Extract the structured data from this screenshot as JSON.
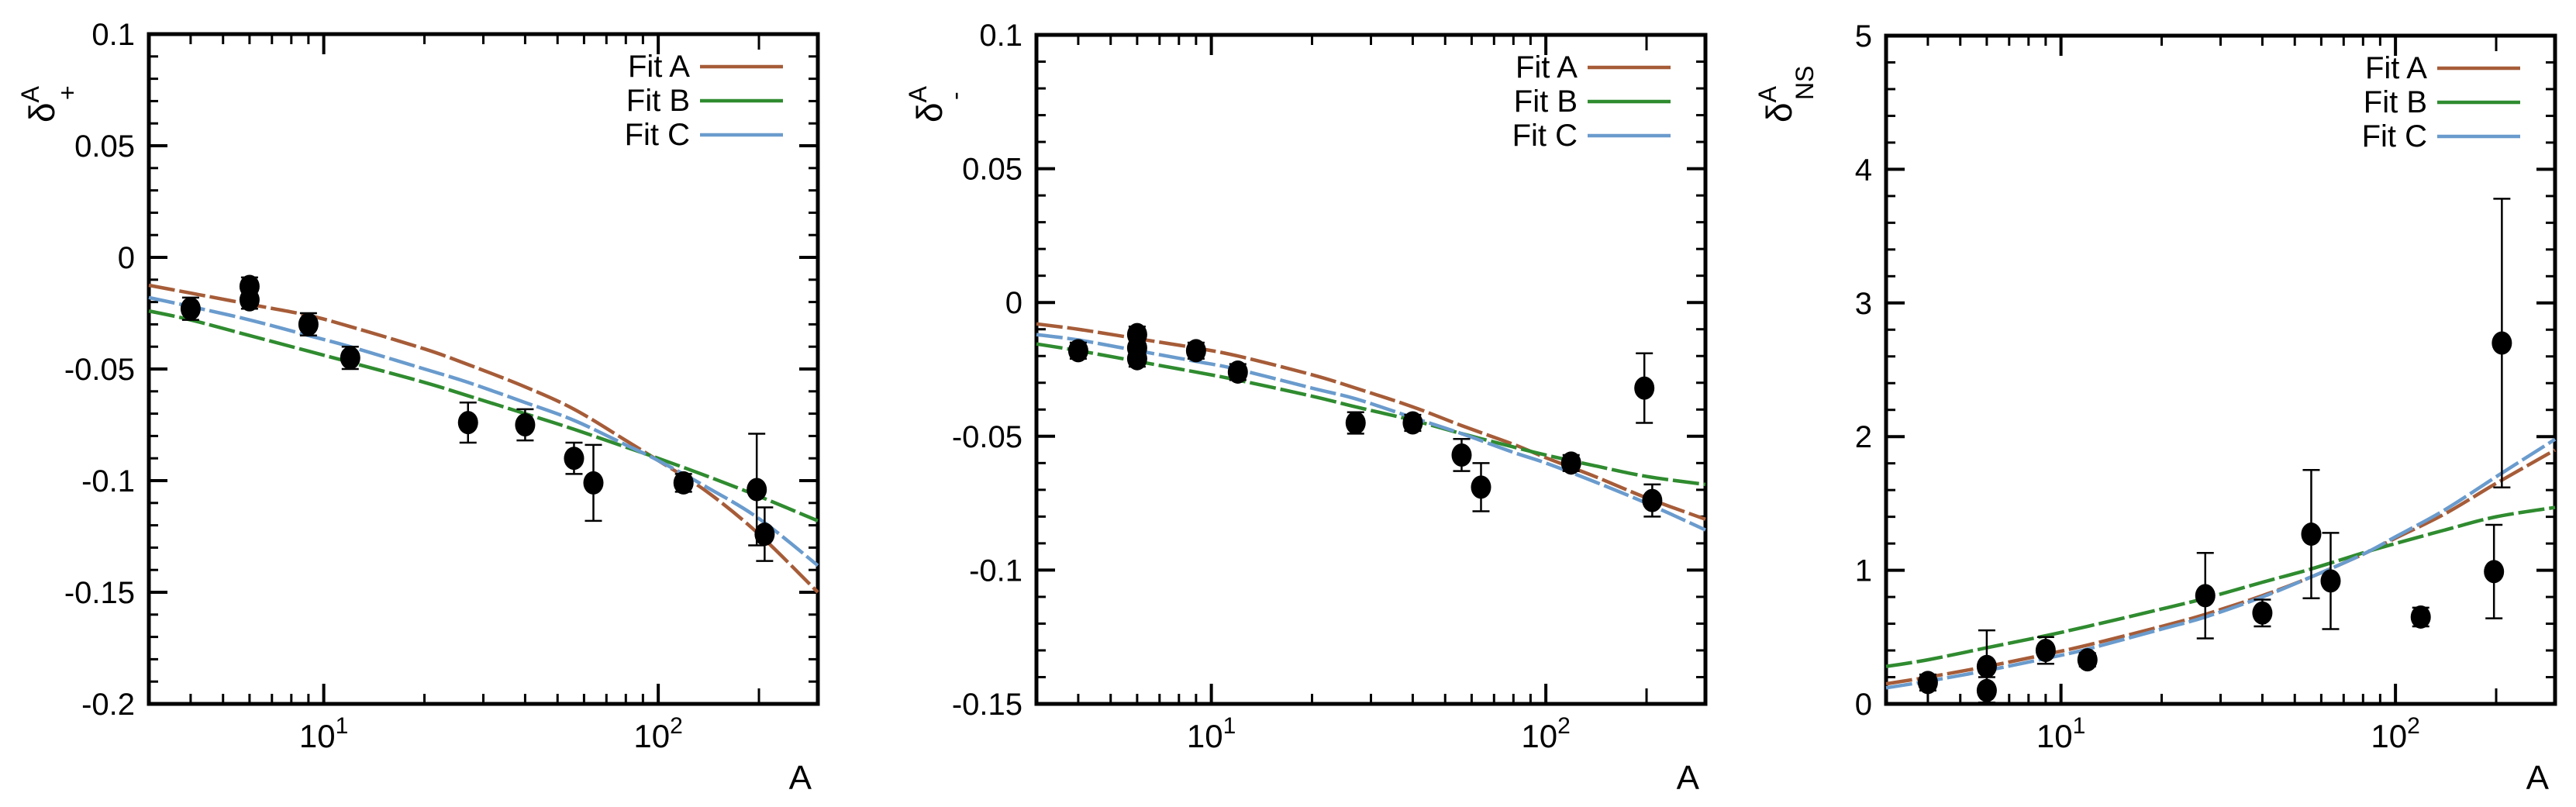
{
  "figure": {
    "background": "#ffffff",
    "axis_color": "#000000",
    "marker_color": "#000000",
    "xlabel": "A",
    "x_major_ticks": [
      {
        "v": 10,
        "base": "10",
        "exp": "1"
      },
      {
        "v": 100,
        "base": "10",
        "exp": "2"
      }
    ],
    "x_minor_ticks": [
      4,
      5,
      6,
      7,
      8,
      9,
      20,
      30,
      40,
      50,
      60,
      70,
      80,
      90,
      200
    ],
    "legend_labels": [
      "Fit A",
      "Fit B",
      "Fit C"
    ]
  },
  "chart_data": [
    {
      "type": "scatter",
      "title": "",
      "ylabel": {
        "base": "δ",
        "sup": "A",
        "sub": "+"
      },
      "xlabel": "A",
      "x_log": true,
      "xlim": [
        3,
        300
      ],
      "ylim": [
        -0.2,
        0.1
      ],
      "yticks": [
        {
          "v": 0.1,
          "label": "0.1"
        },
        {
          "v": 0.05,
          "label": "0.05"
        },
        {
          "v": 0,
          "label": "0"
        },
        {
          "v": -0.05,
          "label": "-0.05"
        },
        {
          "v": -0.1,
          "label": "-0.1"
        },
        {
          "v": -0.15,
          "label": "-0.15"
        },
        {
          "v": -0.2,
          "label": "-0.2"
        }
      ],
      "y_minor_step": 0.01,
      "legend_position": "top-right",
      "series": [
        {
          "name": "Fit A",
          "color": "#a65c38",
          "points": [
            [
              3,
              -0.0125
            ],
            [
              4,
              -0.016
            ],
            [
              6,
              -0.021
            ],
            [
              9,
              -0.026
            ],
            [
              12,
              -0.031
            ],
            [
              20,
              -0.041
            ],
            [
              27,
              -0.048
            ],
            [
              40,
              -0.058
            ],
            [
              56,
              -0.068
            ],
            [
              80,
              -0.082
            ],
            [
              100,
              -0.091
            ],
            [
              140,
              -0.105
            ],
            [
              200,
              -0.124
            ],
            [
              300,
              -0.15
            ]
          ]
        },
        {
          "name": "Fit B",
          "color": "#2f8b2f",
          "points": [
            [
              3,
              -0.024
            ],
            [
              4,
              -0.028
            ],
            [
              6,
              -0.035
            ],
            [
              9,
              -0.042
            ],
            [
              12,
              -0.047
            ],
            [
              20,
              -0.056
            ],
            [
              27,
              -0.062
            ],
            [
              40,
              -0.07
            ],
            [
              56,
              -0.077
            ],
            [
              80,
              -0.085
            ],
            [
              100,
              -0.09
            ],
            [
              140,
              -0.098
            ],
            [
              200,
              -0.107
            ],
            [
              300,
              -0.118
            ]
          ]
        },
        {
          "name": "Fit C",
          "color": "#6a9bcd",
          "points": [
            [
              3,
              -0.018
            ],
            [
              4,
              -0.022
            ],
            [
              6,
              -0.028
            ],
            [
              9,
              -0.035
            ],
            [
              12,
              -0.04
            ],
            [
              20,
              -0.05
            ],
            [
              27,
              -0.056
            ],
            [
              40,
              -0.065
            ],
            [
              56,
              -0.073
            ],
            [
              80,
              -0.084
            ],
            [
              100,
              -0.091
            ],
            [
              140,
              -0.103
            ],
            [
              200,
              -0.117
            ],
            [
              300,
              -0.138
            ]
          ]
        }
      ],
      "data_points": [
        {
          "A": 4,
          "y": -0.023,
          "err": 0.005
        },
        {
          "A": 6,
          "y": -0.013,
          "err": 0.004
        },
        {
          "A": 6,
          "y": -0.019,
          "err": 0.004
        },
        {
          "A": 9,
          "y": -0.03,
          "err": 0.005
        },
        {
          "A": 12,
          "y": -0.045,
          "err": 0.005
        },
        {
          "A": 27,
          "y": -0.074,
          "err": 0.009
        },
        {
          "A": 40,
          "y": -0.075,
          "err": 0.007
        },
        {
          "A": 56,
          "y": -0.09,
          "err": 0.007
        },
        {
          "A": 64,
          "y": -0.101,
          "err": 0.017
        },
        {
          "A": 119,
          "y": -0.101,
          "err": 0.004
        },
        {
          "A": 197,
          "y": -0.104,
          "err": 0.025
        },
        {
          "A": 208,
          "y": -0.124,
          "err": 0.012
        }
      ]
    },
    {
      "type": "scatter",
      "title": "",
      "ylabel": {
        "base": "δ",
        "sup": "A",
        "sub": "-"
      },
      "xlabel": "A",
      "x_log": true,
      "xlim": [
        3,
        300
      ],
      "ylim": [
        -0.15,
        0.1
      ],
      "yticks": [
        {
          "v": 0.1,
          "label": "0.1"
        },
        {
          "v": 0.05,
          "label": "0.05"
        },
        {
          "v": 0,
          "label": "0"
        },
        {
          "v": -0.05,
          "label": "-0.05"
        },
        {
          "v": -0.1,
          "label": "-0.1"
        },
        {
          "v": -0.15,
          "label": "-0.15"
        }
      ],
      "y_minor_step": 0.01,
      "legend_position": "top-right",
      "series": [
        {
          "name": "Fit A",
          "color": "#a65c38",
          "points": [
            [
              3,
              -0.008
            ],
            [
              4,
              -0.01
            ],
            [
              6,
              -0.0135
            ],
            [
              9,
              -0.017
            ],
            [
              12,
              -0.02
            ],
            [
              20,
              -0.027
            ],
            [
              27,
              -0.032
            ],
            [
              40,
              -0.039
            ],
            [
              56,
              -0.046
            ],
            [
              80,
              -0.053
            ],
            [
              100,
              -0.058
            ],
            [
              140,
              -0.065
            ],
            [
              200,
              -0.073
            ],
            [
              300,
              -0.081
            ]
          ]
        },
        {
          "name": "Fit B",
          "color": "#2f8b2f",
          "points": [
            [
              3,
              -0.0155
            ],
            [
              4,
              -0.018
            ],
            [
              6,
              -0.022
            ],
            [
              9,
              -0.026
            ],
            [
              12,
              -0.029
            ],
            [
              20,
              -0.035
            ],
            [
              27,
              -0.039
            ],
            [
              40,
              -0.044
            ],
            [
              56,
              -0.049
            ],
            [
              80,
              -0.054
            ],
            [
              100,
              -0.057
            ],
            [
              140,
              -0.061
            ],
            [
              200,
              -0.065
            ],
            [
              300,
              -0.068
            ]
          ]
        },
        {
          "name": "Fit C",
          "color": "#6a9bcd",
          "points": [
            [
              3,
              -0.012
            ],
            [
              4,
              -0.014
            ],
            [
              6,
              -0.018
            ],
            [
              9,
              -0.022
            ],
            [
              12,
              -0.025
            ],
            [
              20,
              -0.032
            ],
            [
              27,
              -0.036
            ],
            [
              40,
              -0.043
            ],
            [
              56,
              -0.049
            ],
            [
              80,
              -0.056
            ],
            [
              100,
              -0.06
            ],
            [
              140,
              -0.067
            ],
            [
              200,
              -0.075
            ],
            [
              300,
              -0.085
            ]
          ]
        }
      ],
      "data_points": [
        {
          "A": 4,
          "y": -0.018,
          "err": 0.003
        },
        {
          "A": 6,
          "y": -0.012,
          "err": 0.003
        },
        {
          "A": 6,
          "y": -0.017,
          "err": 0.003
        },
        {
          "A": 6,
          "y": -0.021,
          "err": 0.003
        },
        {
          "A": 9,
          "y": -0.018,
          "err": 0.003
        },
        {
          "A": 12,
          "y": -0.026,
          "err": 0.003
        },
        {
          "A": 27,
          "y": -0.045,
          "err": 0.004
        },
        {
          "A": 40,
          "y": -0.045,
          "err": 0.003
        },
        {
          "A": 56,
          "y": -0.057,
          "err": 0.006
        },
        {
          "A": 64,
          "y": -0.069,
          "err": 0.009
        },
        {
          "A": 119,
          "y": -0.06,
          "err": 0.003
        },
        {
          "A": 197,
          "y": -0.032,
          "err": 0.013
        },
        {
          "A": 208,
          "y": -0.074,
          "err": 0.006
        }
      ]
    },
    {
      "type": "scatter",
      "title": "",
      "ylabel": {
        "base": "δ",
        "sup": "A",
        "sub": "NS"
      },
      "xlabel": "A",
      "x_log": true,
      "xlim": [
        3,
        300
      ],
      "ylim": [
        0,
        5
      ],
      "yticks": [
        {
          "v": 5,
          "label": "5"
        },
        {
          "v": 4,
          "label": "4"
        },
        {
          "v": 3,
          "label": "3"
        },
        {
          "v": 2,
          "label": "2"
        },
        {
          "v": 1,
          "label": "1"
        },
        {
          "v": 0,
          "label": "0"
        }
      ],
      "y_minor_step": 0.2,
      "legend_position": "top-right",
      "series": [
        {
          "name": "Fit A",
          "color": "#a65c38",
          "points": [
            [
              3,
              0.15
            ],
            [
              4,
              0.2
            ],
            [
              6,
              0.28
            ],
            [
              9,
              0.37
            ],
            [
              12,
              0.44
            ],
            [
              20,
              0.58
            ],
            [
              27,
              0.67
            ],
            [
              40,
              0.81
            ],
            [
              56,
              0.95
            ],
            [
              80,
              1.12
            ],
            [
              100,
              1.24
            ],
            [
              140,
              1.42
            ],
            [
              200,
              1.65
            ],
            [
              300,
              1.9
            ]
          ]
        },
        {
          "name": "Fit B",
          "color": "#2f8b2f",
          "points": [
            [
              3,
              0.28
            ],
            [
              4,
              0.33
            ],
            [
              6,
              0.42
            ],
            [
              9,
              0.51
            ],
            [
              12,
              0.58
            ],
            [
              20,
              0.71
            ],
            [
              27,
              0.79
            ],
            [
              40,
              0.91
            ],
            [
              56,
              1.01
            ],
            [
              80,
              1.13
            ],
            [
              100,
              1.2
            ],
            [
              140,
              1.3
            ],
            [
              200,
              1.4
            ],
            [
              300,
              1.47
            ]
          ]
        },
        {
          "name": "Fit C",
          "color": "#6a9bcd",
          "points": [
            [
              3,
              0.12
            ],
            [
              4,
              0.17
            ],
            [
              6,
              0.25
            ],
            [
              9,
              0.34
            ],
            [
              12,
              0.41
            ],
            [
              20,
              0.56
            ],
            [
              27,
              0.65
            ],
            [
              40,
              0.8
            ],
            [
              56,
              0.95
            ],
            [
              80,
              1.12
            ],
            [
              100,
              1.25
            ],
            [
              140,
              1.45
            ],
            [
              200,
              1.7
            ],
            [
              300,
              1.98
            ]
          ]
        }
      ],
      "data_points": [
        {
          "A": 4,
          "y": 0.16,
          "err": 0.06
        },
        {
          "A": 6,
          "y": 0.28,
          "err": 0.27
        },
        {
          "A": 6,
          "y": 0.1,
          "err": 0.1
        },
        {
          "A": 9,
          "y": 0.4,
          "err": 0.1
        },
        {
          "A": 12,
          "y": 0.33,
          "err": 0.05
        },
        {
          "A": 27,
          "y": 0.81,
          "err": 0.32
        },
        {
          "A": 40,
          "y": 0.68,
          "err": 0.1
        },
        {
          "A": 56,
          "y": 1.27,
          "err": 0.48
        },
        {
          "A": 64,
          "y": 0.92,
          "err": 0.36
        },
        {
          "A": 119,
          "y": 0.65,
          "err": 0.07
        },
        {
          "A": 197,
          "y": 0.99,
          "err": 0.35
        },
        {
          "A": 208,
          "y": 2.7,
          "err": 1.08
        }
      ]
    }
  ]
}
